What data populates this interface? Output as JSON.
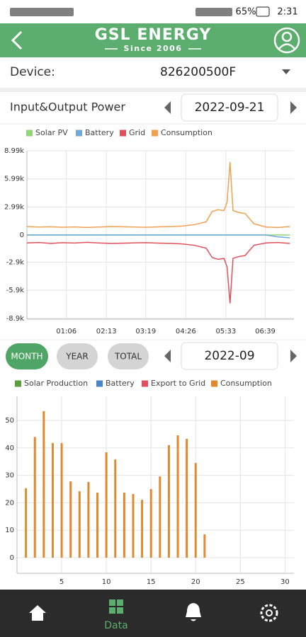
{
  "status_bar": {
    "battery": "65%",
    "time": "2:31"
  },
  "header": {
    "title": "GSL ENERGY",
    "subtitle": "Since 2006"
  },
  "device": {
    "label": "Device:",
    "value": "826200500F"
  },
  "power": {
    "title": "Input&Output Power",
    "date": "2022-09-21"
  },
  "chart_data": [
    {
      "type": "line",
      "x": [
        "00:00",
        "00:20",
        "00:40",
        "01:00",
        "01:20",
        "01:40",
        "02:00",
        "02:20",
        "02:40",
        "03:00",
        "03:20",
        "03:40",
        "04:00",
        "04:20",
        "04:40",
        "05:00",
        "05:10",
        "05:20",
        "05:30",
        "05:35",
        "05:40",
        "05:45",
        "05:55",
        "06:05",
        "06:20",
        "06:40",
        "07:00",
        "07:20"
      ],
      "xlim": [
        "00:00",
        "07:27"
      ],
      "xticks": [
        "01:06",
        "02:13",
        "03:19",
        "04:26",
        "05:33",
        "06:39"
      ],
      "ylim": [
        -8990,
        8990
      ],
      "yticks": [
        {
          "value": 8990,
          "label": "8.99k"
        },
        {
          "value": 5990,
          "label": "5.99k"
        },
        {
          "value": 2990,
          "label": "2.99k"
        },
        0,
        {
          "value": -2900,
          "label": "-2.9k"
        },
        {
          "value": -5900,
          "label": "-5.9k"
        },
        {
          "value": -8900,
          "label": "-8.9k"
        }
      ],
      "grid": true,
      "series": [
        {
          "name": "Solar PV",
          "color": "#8fd677",
          "values": [
            0,
            0,
            0,
            0,
            0,
            0,
            0,
            0,
            0,
            0,
            0,
            0,
            0,
            0,
            0,
            0,
            0,
            0,
            0,
            0,
            0,
            0,
            0,
            0,
            0,
            0,
            0,
            0
          ]
        },
        {
          "name": "Battery",
          "color": "#6fa8dc",
          "values": [
            0,
            0,
            0,
            0,
            0,
            0,
            0,
            0,
            0,
            0,
            0,
            0,
            0,
            0,
            0,
            0,
            0,
            0,
            0,
            0,
            0,
            0,
            0,
            0,
            0,
            0,
            -200,
            -300
          ]
        },
        {
          "name": "Grid",
          "color": "#e0505a",
          "values": [
            -850,
            -800,
            -900,
            -820,
            -860,
            -780,
            -850,
            -900,
            -880,
            -840,
            -820,
            -870,
            -900,
            -950,
            -1100,
            -1400,
            -2400,
            -2600,
            -2500,
            -3400,
            -7300,
            -2500,
            -2300,
            -2200,
            -1100,
            -850,
            -800,
            -900
          ]
        },
        {
          "name": "Consumption",
          "color": "#f0a050",
          "values": [
            900,
            850,
            880,
            820,
            860,
            800,
            850,
            900,
            880,
            850,
            820,
            870,
            900,
            950,
            1100,
            1400,
            2500,
            2700,
            2600,
            3500,
            7800,
            2600,
            2400,
            2300,
            1200,
            850,
            800,
            900
          ]
        }
      ]
    },
    {
      "type": "bar",
      "x": [
        1,
        2,
        3,
        4,
        5,
        6,
        7,
        8,
        9,
        10,
        11,
        12,
        13,
        14,
        15,
        16,
        17,
        18,
        19,
        20,
        21
      ],
      "xlim": [
        0,
        31
      ],
      "xticks": [
        5,
        10,
        15,
        20,
        25,
        30
      ],
      "ylim": [
        -5.7,
        58.8
      ],
      "yticks": [
        0,
        10,
        20,
        30,
        40,
        50
      ],
      "grid": true,
      "series": [
        {
          "name": "Solar Production",
          "color": "#5a9e3a",
          "values": [
            0,
            0,
            0,
            0,
            0,
            0,
            0,
            0,
            0,
            0,
            0,
            0,
            0,
            0,
            0,
            0,
            0,
            0,
            0,
            0,
            0
          ]
        },
        {
          "name": "Battery",
          "color": "#4a86c8",
          "values": [
            0,
            0,
            0,
            0,
            0,
            0,
            0,
            0,
            0,
            0,
            0,
            0,
            0,
            0,
            0,
            0,
            0,
            0,
            0,
            0,
            0
          ]
        },
        {
          "name": "Export to Grid",
          "color": "#e05060",
          "values": [
            0,
            0,
            0,
            0,
            0,
            0,
            0,
            0,
            0,
            0,
            0,
            0,
            0,
            0,
            0,
            0,
            0,
            0,
            0,
            0,
            0
          ]
        },
        {
          "name": "Consumption",
          "color": "#e08a30",
          "values": [
            25.3,
            44,
            53.4,
            41.8,
            41.8,
            27.8,
            24.2,
            27.6,
            23.7,
            38.4,
            35.8,
            23.7,
            23.2,
            21.1,
            25,
            29.6,
            41,
            44.6,
            43.3,
            34.5,
            8.5
          ]
        }
      ]
    }
  ],
  "tabs": [
    "MONTH",
    "YEAR",
    "TOTAL"
  ],
  "month": "2022-09",
  "nav": {
    "data": "Data"
  }
}
